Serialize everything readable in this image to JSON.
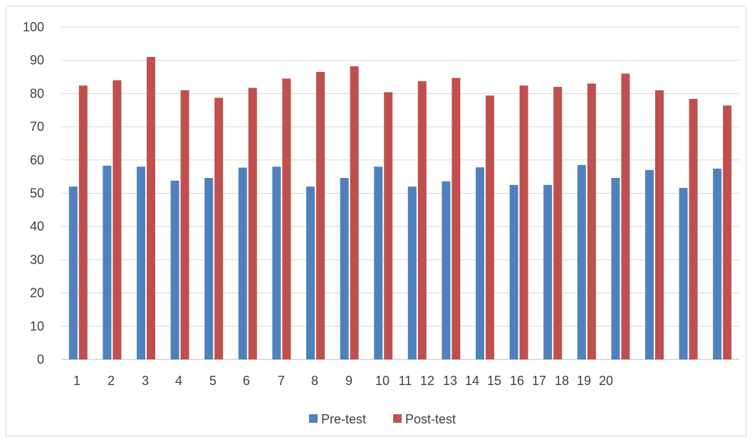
{
  "chart_data": {
    "type": "bar",
    "categories": [
      "1",
      "2",
      "3",
      "4",
      "5",
      "6",
      "7",
      "8",
      "9",
      "10",
      "11",
      "12",
      "13",
      "14",
      "15",
      "16",
      "17",
      "18",
      "19",
      "20"
    ],
    "y_tick_labels": [
      "0",
      "10",
      "20",
      "30",
      "40",
      "50",
      "60",
      "70",
      "80",
      "90",
      "100"
    ],
    "x_tick_labels": [
      "1",
      "2",
      "3",
      "4",
      "5",
      "6",
      "7",
      "8",
      "9",
      "10",
      "11",
      "12",
      "13",
      "14",
      "15",
      "16",
      "17",
      "18",
      "19",
      "20"
    ],
    "series": [
      {
        "name": "Pre-test",
        "color": "#4f81bd",
        "values": [
          52,
          58.3,
          58,
          53.8,
          54.6,
          57.7,
          58,
          52,
          54.6,
          58,
          52,
          53.6,
          57.8,
          52.5,
          52.5,
          58.5,
          54.6,
          57,
          51.6,
          57.4
        ]
      },
      {
        "name": "Post-test",
        "color": "#c0504d",
        "values": [
          82.4,
          84,
          91,
          81,
          78.7,
          81.7,
          84.5,
          86.5,
          88.2,
          80.4,
          83.7,
          84.7,
          79.4,
          82.4,
          82,
          83,
          86,
          81,
          78.4,
          76.4
        ]
      }
    ],
    "ylim": [
      0,
      100
    ],
    "grid": true,
    "legend_position": "bottom"
  }
}
